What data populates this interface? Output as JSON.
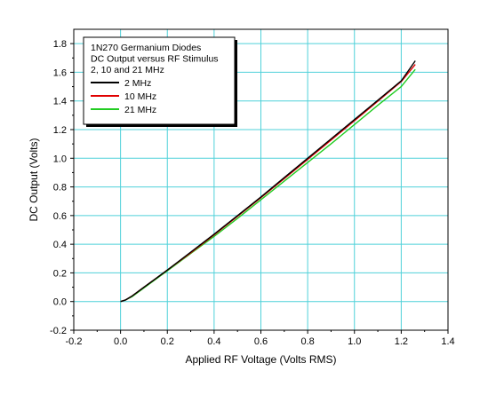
{
  "chart_data": {
    "type": "line",
    "xlabel": "Applied RF Voltage (Volts RMS)",
    "ylabel": "DC Output (Volts)",
    "xlim": [
      -0.2,
      1.4
    ],
    "ylim": [
      -0.2,
      1.9
    ],
    "xticks": [
      -0.2,
      0.0,
      0.2,
      0.4,
      0.6,
      0.8,
      1.0,
      1.2,
      1.4
    ],
    "yticks": [
      -0.2,
      0.0,
      0.2,
      0.4,
      0.6,
      0.8,
      1.0,
      1.2,
      1.4,
      1.6,
      1.8
    ],
    "xtick_labels": [
      "-0.2",
      "0.0",
      "0.2",
      "0.4",
      "0.6",
      "0.8",
      "1.0",
      "1.2",
      "1.4"
    ],
    "ytick_labels": [
      "-0.2",
      "0.0",
      "0.2",
      "0.4",
      "0.6",
      "0.8",
      "1.0",
      "1.2",
      "1.4",
      "1.6",
      "1.8"
    ],
    "grid": true,
    "grid_color": "#4fd1d9",
    "legend_title_lines": [
      "1N270 Germanium Diodes",
      "DC Output versus RF Stimulus",
      "2, 10 and 21 MHz"
    ],
    "legend_position": "top-left",
    "series": [
      {
        "name": "2 MHz",
        "color": "#000000",
        "x": [
          0.0,
          0.02,
          0.05,
          0.1,
          0.15,
          0.2,
          0.3,
          0.4,
          0.5,
          0.6,
          0.7,
          0.8,
          0.9,
          1.0,
          1.1,
          1.2,
          1.26
        ],
        "y": [
          0.0,
          0.01,
          0.04,
          0.1,
          0.16,
          0.22,
          0.345,
          0.47,
          0.6,
          0.73,
          0.865,
          1.0,
          1.135,
          1.27,
          1.405,
          1.54,
          1.68
        ]
      },
      {
        "name": "10 MHz",
        "color": "#e00000",
        "x": [
          0.0,
          0.02,
          0.05,
          0.1,
          0.15,
          0.2,
          0.3,
          0.4,
          0.5,
          0.6,
          0.7,
          0.8,
          0.9,
          1.0,
          1.1,
          1.2,
          1.26
        ],
        "y": [
          0.0,
          0.01,
          0.04,
          0.1,
          0.16,
          0.22,
          0.34,
          0.465,
          0.595,
          0.725,
          0.858,
          0.992,
          1.127,
          1.262,
          1.398,
          1.535,
          1.655
        ]
      },
      {
        "name": "21 MHz",
        "color": "#22cc22",
        "x": [
          0.0,
          0.02,
          0.05,
          0.1,
          0.15,
          0.2,
          0.3,
          0.4,
          0.5,
          0.6,
          0.7,
          0.8,
          0.9,
          1.0,
          1.1,
          1.2,
          1.26
        ],
        "y": [
          0.0,
          0.01,
          0.035,
          0.095,
          0.155,
          0.215,
          0.335,
          0.455,
          0.58,
          0.71,
          0.84,
          0.97,
          1.1,
          1.235,
          1.37,
          1.5,
          1.62
        ]
      }
    ]
  }
}
